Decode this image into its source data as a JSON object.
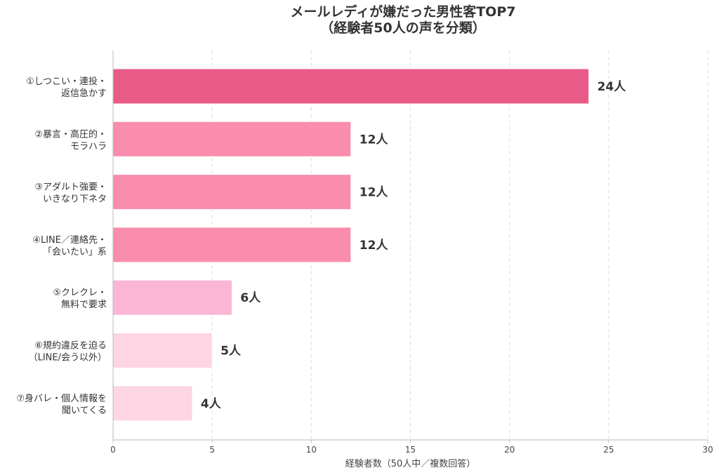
{
  "chart_data": {
    "type": "bar",
    "orientation": "horizontal",
    "title": [
      "メールレディが嫌だった男性客TOP7",
      "（経験者50人の声を分類）"
    ],
    "xlabel": "経験者数（50人中／複数回答）",
    "ylabel": "",
    "xlim": [
      0,
      30
    ],
    "xticks": [
      0,
      5,
      10,
      15,
      20,
      25,
      30
    ],
    "grid": "x-dashed",
    "legend": "none",
    "value_suffix": "人",
    "categories": [
      [
        "①しつこい・連投・",
        "返信急かす"
      ],
      [
        "②暴言・高圧的・",
        "モラハラ"
      ],
      [
        "③アダルト強要・",
        "いきなり下ネタ"
      ],
      [
        "④LINE／連絡先・",
        "「会いたい」系"
      ],
      [
        "⑤クレクレ・",
        "無料で要求"
      ],
      [
        "⑥規約違反を迫る",
        "（LINE/会う以外）"
      ],
      [
        "⑦身バレ・個人情報を",
        "聞いてくる"
      ]
    ],
    "values": [
      24,
      12,
      12,
      12,
      6,
      5,
      4
    ],
    "colors": [
      "#e85a87",
      "#fa8cae",
      "#fa8cae",
      "#fa8cae",
      "#fbb5d5",
      "#fdd5e3",
      "#fdd5e3"
    ]
  }
}
